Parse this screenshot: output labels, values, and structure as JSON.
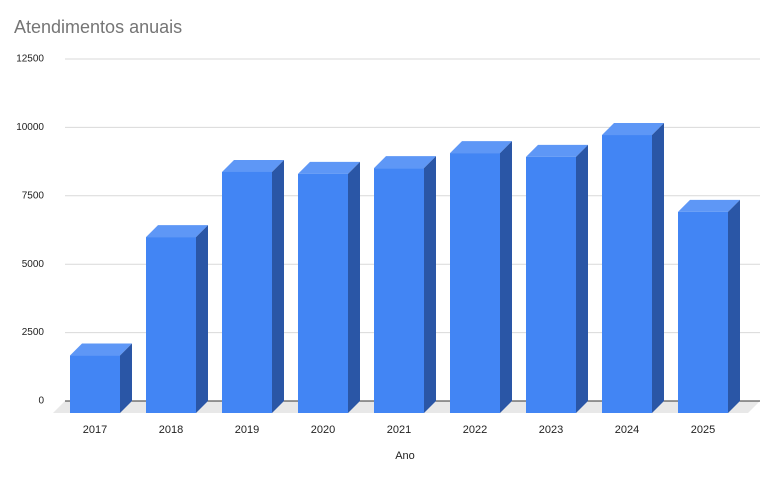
{
  "chart_data": {
    "type": "bar3d",
    "title": "Atendimentos anuais",
    "x_label": "Ano",
    "categories": [
      "2017",
      "2018",
      "2019",
      "2020",
      "2021",
      "2022",
      "2023",
      "2024",
      "2025"
    ],
    "values": [
      2100,
      6430,
      8810,
      8740,
      8950,
      9500,
      9360,
      10160,
      7350
    ],
    "color": "#4285f4",
    "ylim": [
      0,
      12500
    ],
    "yticks": [
      0,
      2500,
      5000,
      7500,
      10000,
      12500
    ],
    "grid": true
  }
}
